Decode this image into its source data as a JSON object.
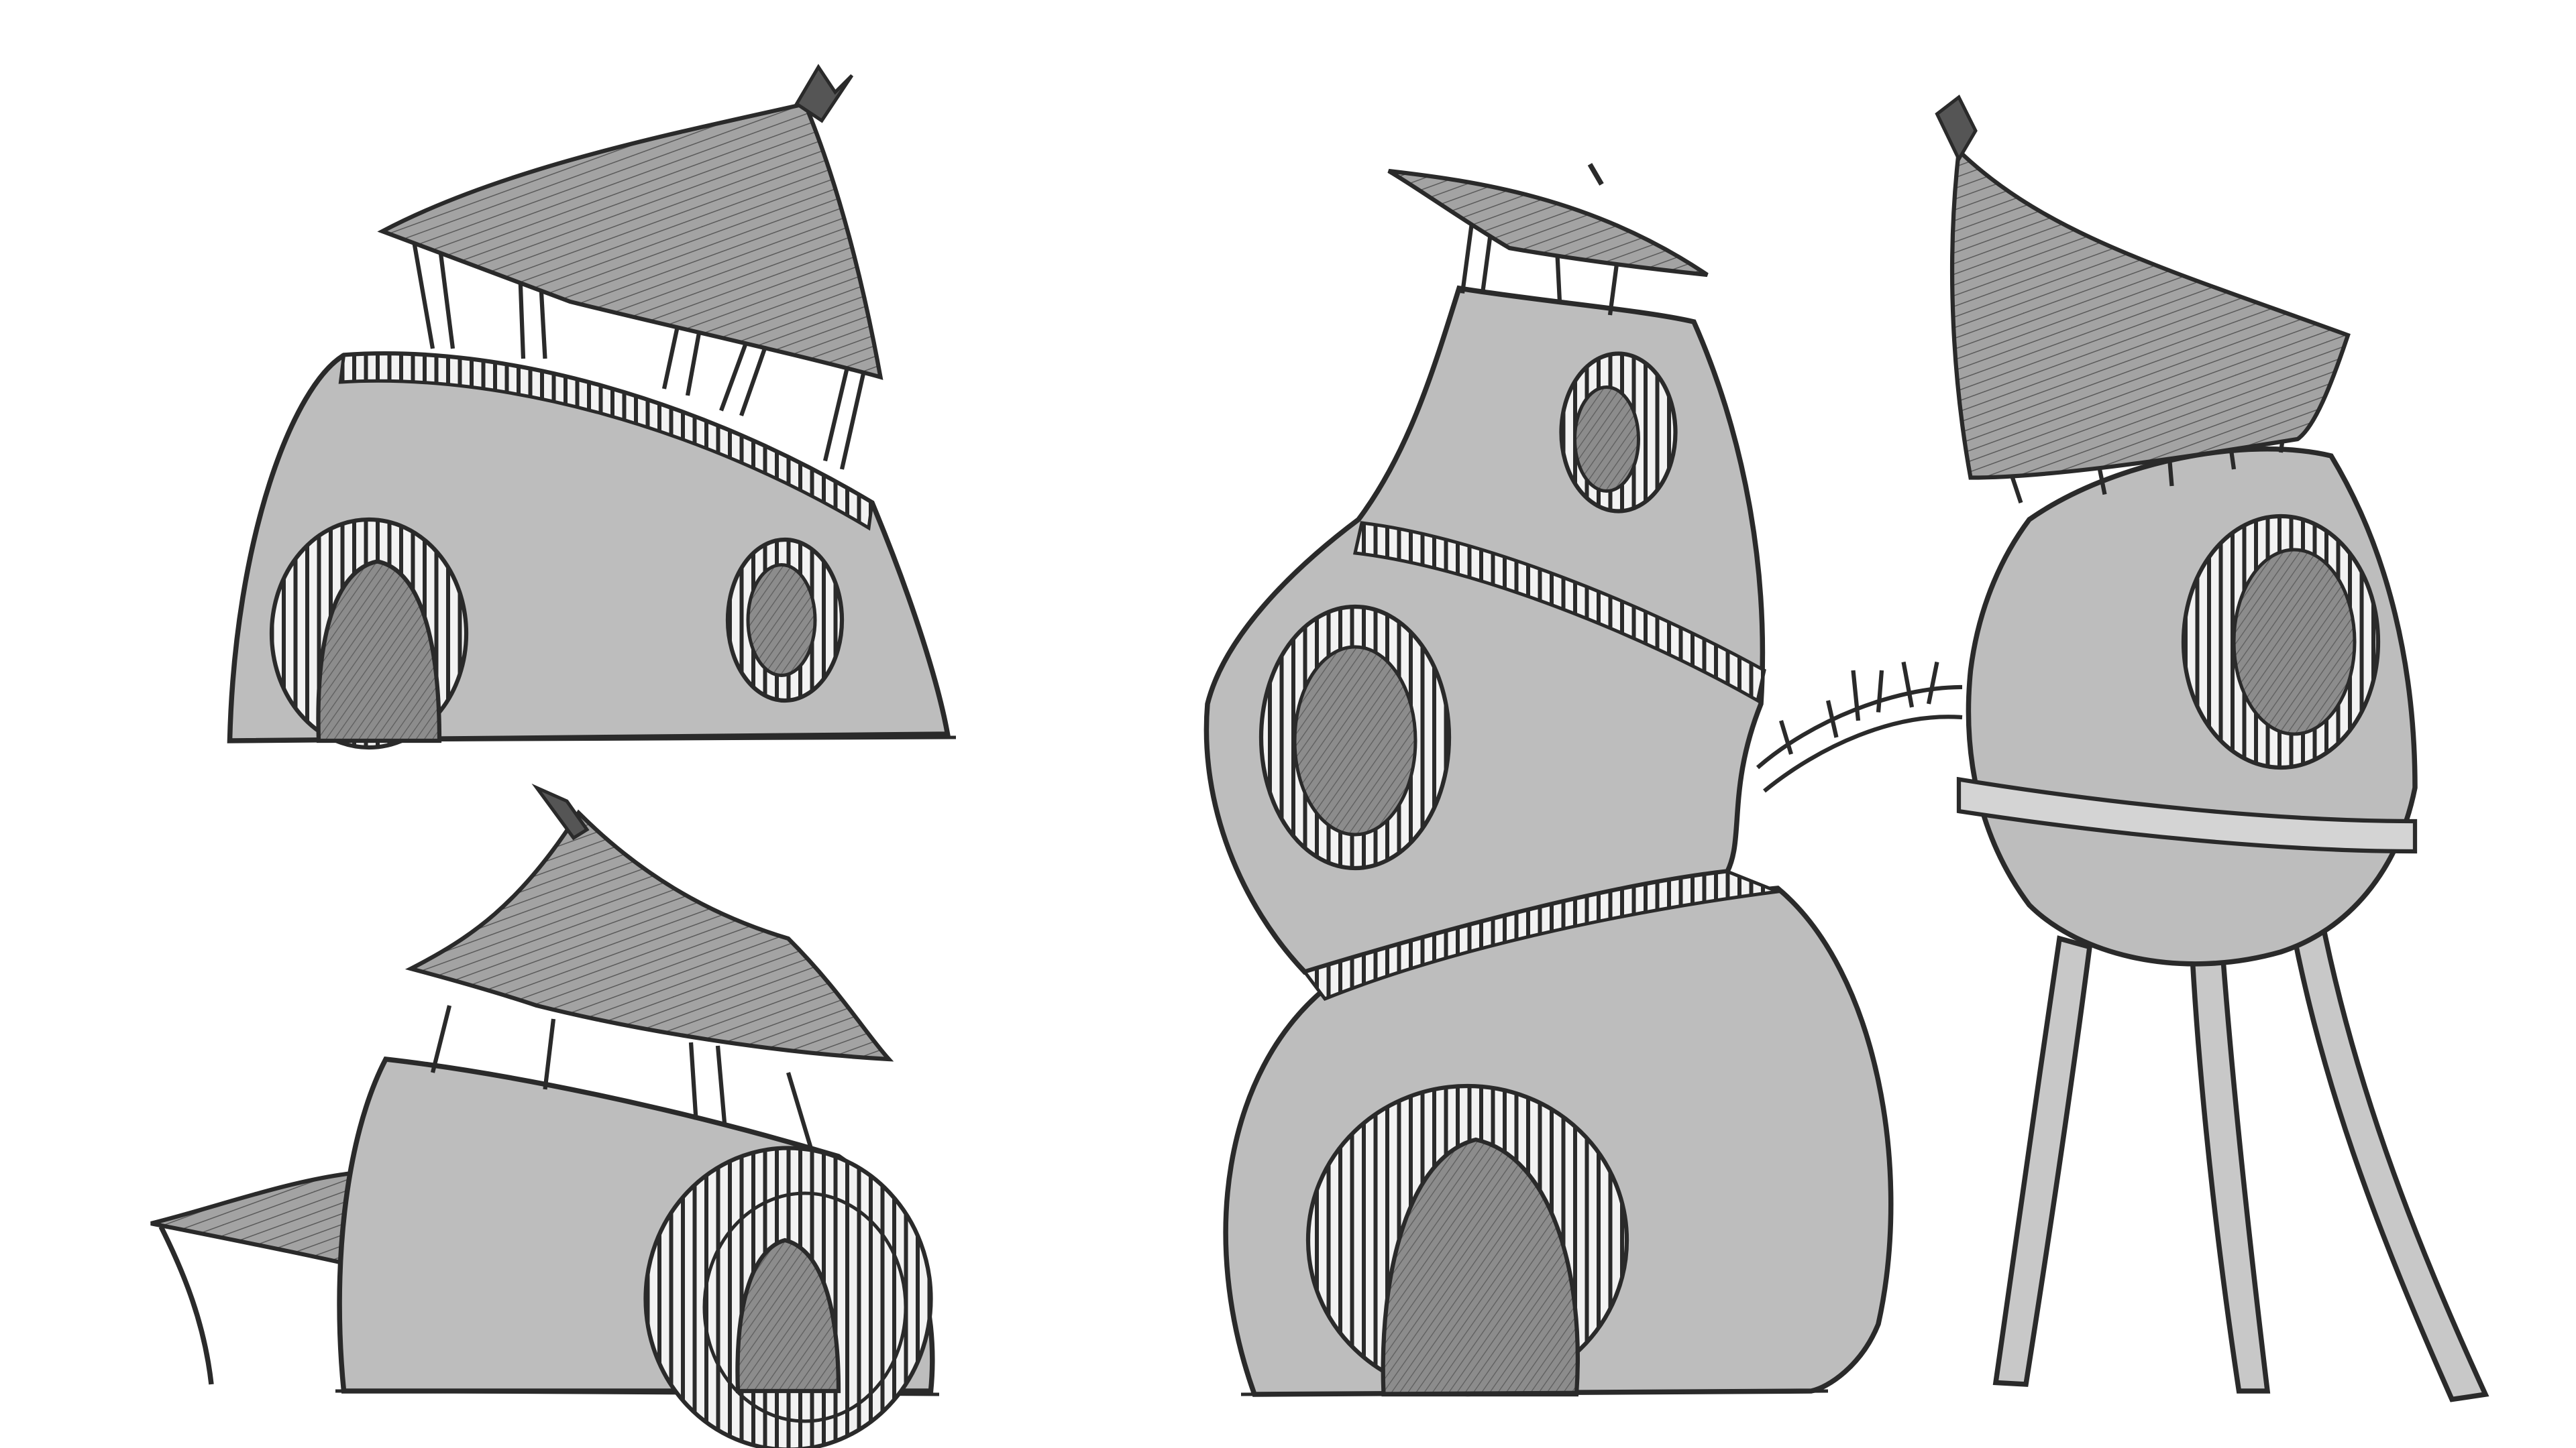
{
  "artwork": {
    "subject": "pencil-sketch-hut-concepts",
    "palette": {
      "background": "#ffffff",
      "body": "#bdbdbd",
      "opening": "#8a8a8a",
      "thatch": "#9e9e9e",
      "stroke": "#2a2a2a"
    },
    "drawings": [
      {
        "id": "sloped-roof-dome-hut",
        "icon": "dome-hut-icon"
      },
      {
        "id": "canopy-dome-hut",
        "icon": "canopy-hut-icon"
      },
      {
        "id": "gourd-tower-hut",
        "icon": "gourd-tower-icon"
      },
      {
        "id": "stilt-pod-hut",
        "icon": "stilt-pod-icon"
      }
    ]
  }
}
